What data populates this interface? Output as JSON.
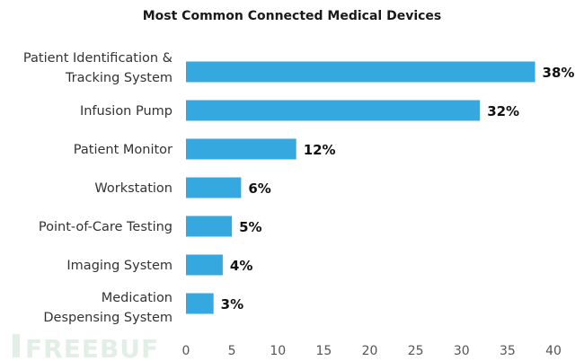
{
  "chart_data": {
    "type": "bar",
    "orientation": "horizontal",
    "title": "Most Common Connected Medical Devices",
    "categories": [
      [
        "Patient Identification &",
        "Tracking System"
      ],
      [
        "Infusion Pump"
      ],
      [
        "Patient Monitor"
      ],
      [
        "Workstation"
      ],
      [
        "Point-of-Care Testing"
      ],
      [
        "Imaging System"
      ],
      [
        "Medication",
        "Despensing System"
      ]
    ],
    "values": [
      38,
      32,
      12,
      6,
      5,
      4,
      3
    ],
    "value_labels": [
      "38%",
      "32%",
      "12%",
      "6%",
      "5%",
      "4%",
      "3%"
    ],
    "xlim": [
      0,
      40
    ],
    "xticks": [
      "0",
      "5",
      "10",
      "15",
      "20",
      "25",
      "30",
      "35",
      "40"
    ],
    "xlabel": "",
    "ylabel": "",
    "grid": false,
    "bar_color": "#35a8e0"
  },
  "watermark": "FREEBUF"
}
